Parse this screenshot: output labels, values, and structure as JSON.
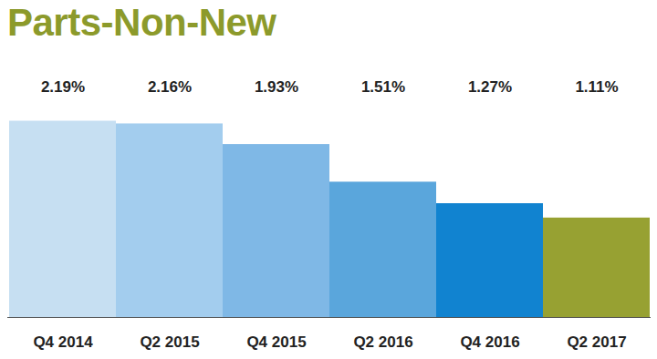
{
  "chart_data": {
    "type": "bar",
    "title": "Parts-Non-New",
    "categories": [
      "Q4 2014",
      "Q2 2015",
      "Q4 2015",
      "Q2 2016",
      "Q4 2016",
      "Q2 2017"
    ],
    "values": [
      2.19,
      2.16,
      1.93,
      1.51,
      1.27,
      1.11
    ],
    "value_labels": [
      "2.19%",
      "2.16%",
      "1.93%",
      "1.51%",
      "1.27%",
      "1.11%"
    ],
    "colors": [
      "#c6dff2",
      "#a3cdee",
      "#7fb8e6",
      "#5aa6dc",
      "#1183d0",
      "#97a132"
    ],
    "ylim": [
      0,
      2.5
    ],
    "data_labels": true,
    "tick_labels": "x",
    "grid": false
  }
}
